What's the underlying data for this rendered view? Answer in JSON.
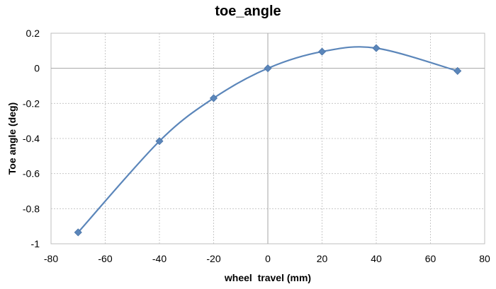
{
  "chart_data": {
    "type": "line",
    "title": "toe_angle",
    "xlabel": "wheel  travel (mm)",
    "ylabel": "Toe angle (deg)",
    "xlim": [
      -80,
      80
    ],
    "ylim": [
      -1,
      0.2
    ],
    "xticks": [
      -80,
      -60,
      -40,
      -20,
      0,
      20,
      40,
      60,
      80
    ],
    "yticks": [
      0.2,
      0,
      -0.2,
      -0.4,
      -0.6,
      -0.8,
      -1
    ],
    "xtick_labels": [
      "-80",
      "-60",
      "-40",
      "-20",
      "0",
      "20",
      "40",
      "60",
      "80"
    ],
    "ytick_labels": [
      "0.2",
      "0",
      "-0.2",
      "-0.4",
      "-0.6",
      "-0.8",
      "-1"
    ],
    "grid": true,
    "smooth": true,
    "marker": "diamond",
    "series": [
      {
        "color": "#5b86ba",
        "x": [
          -70,
          -40,
          -20,
          0,
          20,
          40,
          70
        ],
        "y": [
          -0.935,
          -0.415,
          -0.17,
          0.0,
          0.095,
          0.115,
          -0.015
        ]
      }
    ]
  }
}
